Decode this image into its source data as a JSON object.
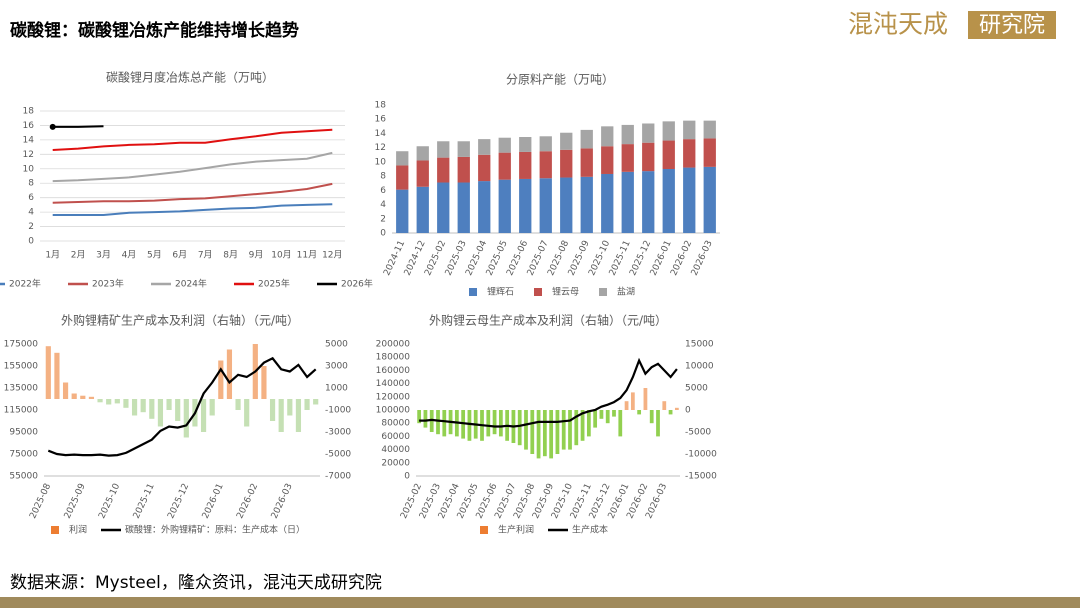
{
  "header": {
    "title": "碳酸锂：碳酸锂冶炼产能维持增长趋势",
    "logo_main": "混沌天成",
    "logo_box": "研究院"
  },
  "footer": {
    "source": "数据来源：Mysteel，隆众资讯，混沌天成研究院"
  },
  "chart_data": [
    {
      "type": "line",
      "title": "碳酸锂月度冶炼总产能（万吨）",
      "categories": [
        "1月",
        "2月",
        "3月",
        "4月",
        "5月",
        "6月",
        "7月",
        "8月",
        "9月",
        "10月",
        "11月",
        "12月"
      ],
      "ylim": [
        0,
        18
      ],
      "yticks": [
        0,
        2,
        4,
        6,
        8,
        10,
        12,
        14,
        16,
        18
      ],
      "grid": true,
      "legend": "bottom",
      "series": [
        {
          "name": "2022年",
          "color": "#4a7ebb",
          "values": [
            3.6,
            3.6,
            3.6,
            3.9,
            4.0,
            4.1,
            4.3,
            4.5,
            4.6,
            4.9,
            5.0,
            5.1
          ]
        },
        {
          "name": "2023年",
          "color": "#c0504d",
          "values": [
            5.3,
            5.4,
            5.5,
            5.5,
            5.6,
            5.8,
            5.9,
            6.2,
            6.5,
            6.8,
            7.2,
            7.9
          ]
        },
        {
          "name": "2024年",
          "color": "#a6a6a6",
          "values": [
            8.3,
            8.4,
            8.6,
            8.8,
            9.2,
            9.6,
            10.1,
            10.6,
            11.0,
            11.2,
            11.4,
            12.2
          ]
        },
        {
          "name": "2025年",
          "color": "#e01010",
          "values": [
            12.6,
            12.8,
            13.1,
            13.3,
            13.4,
            13.6,
            13.6,
            14.1,
            14.5,
            15.0,
            15.2,
            15.4
          ]
        },
        {
          "name": "2026年",
          "color": "#000000",
          "marker": true,
          "values": [
            15.8,
            15.8,
            15.9,
            null,
            null,
            null,
            null,
            null,
            null,
            null,
            null,
            null
          ]
        }
      ]
    },
    {
      "type": "bar",
      "stacked": true,
      "title": "分原料产能（万吨）",
      "categories": [
        "2024-11",
        "2024-12",
        "2025-02",
        "2025-03",
        "2025-04",
        "2025-05",
        "2025-06",
        "2025-07",
        "2025-08",
        "2025-09",
        "2025-10",
        "2025-11",
        "2025-12",
        "2026-01",
        "2026-02",
        "2026-03"
      ],
      "ylim": [
        0,
        18
      ],
      "yticks": [
        0,
        2,
        4,
        6,
        8,
        10,
        12,
        14,
        16,
        18
      ],
      "grid": false,
      "legend": "bottom",
      "series": [
        {
          "name": "锂辉石",
          "color": "#4e7fbf",
          "values": [
            6.1,
            6.5,
            7.1,
            7.1,
            7.3,
            7.5,
            7.6,
            7.7,
            7.8,
            7.9,
            8.3,
            8.6,
            8.7,
            9.0,
            9.2,
            9.3
          ]
        },
        {
          "name": "锂云母",
          "color": "#c0504d",
          "values": [
            3.4,
            3.7,
            3.5,
            3.6,
            3.7,
            3.8,
            3.8,
            3.8,
            3.9,
            4.0,
            3.9,
            3.9,
            4.0,
            4.0,
            4.0,
            4.0
          ]
        },
        {
          "name": "盐湖",
          "color": "#a5a5a5",
          "values": [
            2.0,
            2.0,
            2.3,
            2.2,
            2.2,
            2.1,
            2.1,
            2.1,
            2.4,
            2.6,
            2.8,
            2.7,
            2.7,
            2.7,
            2.6,
            2.5
          ]
        }
      ]
    },
    {
      "type": "combo",
      "title": "外购锂精矿生产成本及利润（右轴）（元/吨）",
      "categories": [
        "2025-08",
        null,
        null,
        null,
        "2025-09",
        null,
        null,
        null,
        "2025-10",
        null,
        null,
        null,
        "2025-11",
        null,
        null,
        null,
        "2025-12",
        null,
        null,
        null,
        "2026-01",
        null,
        null,
        null,
        "2026-02",
        null,
        null,
        null,
        "2026-03",
        null,
        null,
        null
      ],
      "ylim": [
        55000,
        175000
      ],
      "yticks": [
        55000,
        75000,
        95000,
        115000,
        135000,
        155000,
        175000
      ],
      "y2lim": [
        -7000,
        5000
      ],
      "y2ticks": [
        -7000,
        -5000,
        -3000,
        -1000,
        1000,
        3000,
        5000
      ],
      "grid": false,
      "legend": "bottom",
      "series": [
        {
          "name": "利润",
          "kind": "bar",
          "axis": "y2",
          "color": "#f4b183",
          "negative_color": "#c5e0b4",
          "values": [
            4800,
            4200,
            1500,
            500,
            300,
            200,
            -300,
            -500,
            -400,
            -800,
            -1500,
            -1200,
            -1800,
            -2500,
            -1000,
            -2000,
            -3500,
            -2500,
            -3000,
            -1500,
            3500,
            4500,
            -1000,
            -2500,
            5000,
            3000,
            -2000,
            -3000,
            -1500,
            -3000,
            -1000,
            -500
          ]
        },
        {
          "name": "碳酸锂：外购锂精矿：原料：生产成本（日）",
          "kind": "line",
          "color": "#000000",
          "values": [
            78000,
            75000,
            74000,
            74500,
            74000,
            74000,
            74500,
            73500,
            74000,
            76000,
            80000,
            84000,
            88000,
            96000,
            100000,
            99000,
            101000,
            112000,
            130000,
            140000,
            152000,
            140000,
            147000,
            145000,
            150000,
            158000,
            162000,
            152000,
            150000,
            156000,
            145000,
            152000
          ]
        }
      ]
    },
    {
      "type": "combo",
      "title": "外购锂云母生产成本及利润（右轴）（元/吨）",
      "categories": [
        "2025-02",
        null,
        null,
        "2025-03",
        null,
        null,
        "2025-04",
        null,
        null,
        "2025-05",
        null,
        null,
        "2025-06",
        null,
        null,
        "2025-07",
        null,
        null,
        "2025-08",
        null,
        null,
        "2025-09",
        null,
        null,
        "2025-10",
        null,
        null,
        "2025-11",
        null,
        null,
        "2025-12",
        null,
        null,
        "2026-01",
        null,
        null,
        "2026-02",
        null,
        null,
        "2026-03",
        null,
        null
      ],
      "ylim": [
        0,
        200000
      ],
      "yticks": [
        0,
        20000,
        40000,
        60000,
        80000,
        100000,
        120000,
        140000,
        160000,
        180000,
        200000
      ],
      "y2lim": [
        -15000,
        15000
      ],
      "y2ticks": [
        -15000,
        -10000,
        -5000,
        0,
        5000,
        10000,
        15000
      ],
      "grid": false,
      "legend": "bottom",
      "series": [
        {
          "name": "生产利润",
          "kind": "bar",
          "axis": "y2",
          "color": "#f4b183",
          "negative_color": "#92d050",
          "values": [
            -3000,
            -4000,
            -5000,
            -5500,
            -6000,
            -5500,
            -6000,
            -6500,
            -7000,
            -6500,
            -7000,
            -6000,
            -5500,
            -6000,
            -7000,
            -7500,
            -8000,
            -9000,
            -10000,
            -11000,
            -10500,
            -11000,
            -10000,
            -9000,
            -9000,
            -8000,
            -7000,
            -6000,
            -4000,
            -2000,
            -3000,
            -1500,
            -6000,
            2000,
            4000,
            -1000,
            5000,
            -3000,
            -6000,
            2000,
            -1000,
            500
          ]
        },
        {
          "name": "生产成本",
          "kind": "line",
          "color": "#000000",
          "values": [
            84000,
            84000,
            85000,
            84000,
            83000,
            82000,
            81000,
            80000,
            79000,
            78000,
            77000,
            76000,
            75000,
            75000,
            76000,
            75000,
            76000,
            78000,
            80000,
            82000,
            82000,
            82000,
            82000,
            83000,
            84000,
            90000,
            95000,
            98000,
            100000,
            105000,
            108000,
            112000,
            118000,
            130000,
            150000,
            175000,
            155000,
            165000,
            170000,
            160000,
            150000,
            162000
          ]
        }
      ]
    }
  ]
}
